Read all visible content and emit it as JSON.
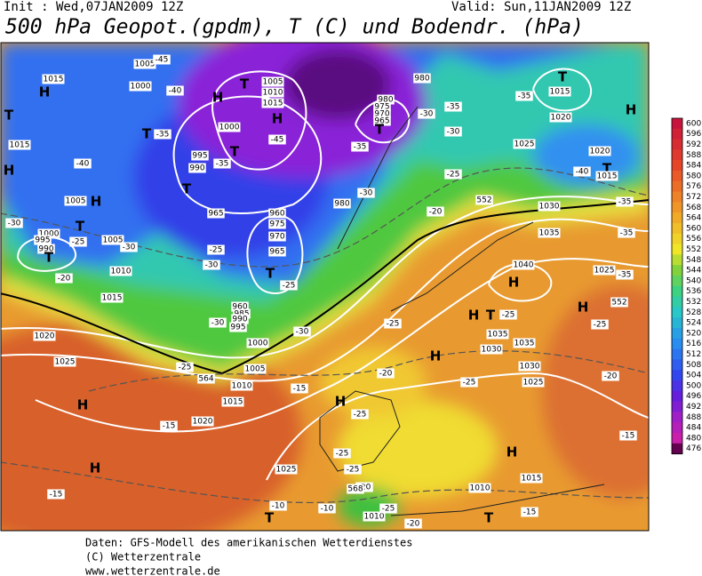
{
  "header": {
    "init": "Init : Wed,07JAN2009 12Z",
    "valid": "Valid: Sun,11JAN2009 12Z",
    "title": "500 hPa Geopot.(gpdm), T (C) und Bodendr. (hPa)"
  },
  "footer": [
    "Daten: GFS-Modell des amerikanischen Wetterdienstes",
    "(C) Wetterzentrale",
    "www.wetterzentrale.de"
  ],
  "colorbar": {
    "labels": [
      600,
      596,
      592,
      588,
      584,
      580,
      576,
      572,
      568,
      564,
      560,
      556,
      552,
      548,
      544,
      540,
      536,
      532,
      528,
      524,
      520,
      516,
      512,
      508,
      504,
      500,
      496,
      492,
      488,
      484,
      480,
      476
    ]
  },
  "map": {
    "labels": [
      "H",
      "H",
      "T",
      "1005",
      "-45",
      "1015",
      "1000",
      "-40",
      "1005",
      "1010",
      "1015",
      "H",
      "-45",
      "980",
      "980",
      "975",
      "970",
      "965",
      "T",
      "-35",
      "-30",
      "-35",
      "-30",
      "1015",
      "T",
      "-35",
      "1020",
      "H",
      "1025",
      "1020",
      "T",
      "-40",
      "1015",
      "1000",
      "T",
      "-35",
      "995",
      "990",
      "T",
      "-35",
      "T",
      "-40",
      "1015",
      "H",
      "T",
      "1005",
      "H",
      "T",
      "-25",
      "1000",
      "995",
      "990",
      "T",
      "1005",
      "-30",
      "1010",
      "-20",
      "-30",
      "965",
      "960",
      "975",
      "970",
      "965",
      "T",
      "-25",
      "-25",
      "-30",
      "980",
      "-30",
      "-20",
      "-25",
      "552",
      "1030",
      "1035",
      "-35",
      "-35",
      "1025",
      "-35",
      "1040",
      "H",
      "-25",
      "H",
      "T",
      "1035",
      "1035",
      "1030",
      "H",
      "1030",
      "1025",
      "-20",
      "-25",
      "H",
      "552",
      "1015",
      "960",
      "985",
      "990",
      "995",
      "-30",
      "-30",
      "1000",
      "1020",
      "1025",
      "-25",
      "564",
      "1005",
      "1010",
      "-15",
      "1015",
      "H",
      "-15",
      "1020",
      "H",
      "-25",
      "-25",
      "-25",
      "-25",
      "-20",
      "H",
      "1025",
      "-15",
      "-15",
      "H",
      "1015",
      "1010",
      "-20",
      "-25",
      "568",
      "1010",
      "-25",
      "-20",
      "T",
      "T",
      "-10",
      "-10",
      "-15"
    ]
  }
}
